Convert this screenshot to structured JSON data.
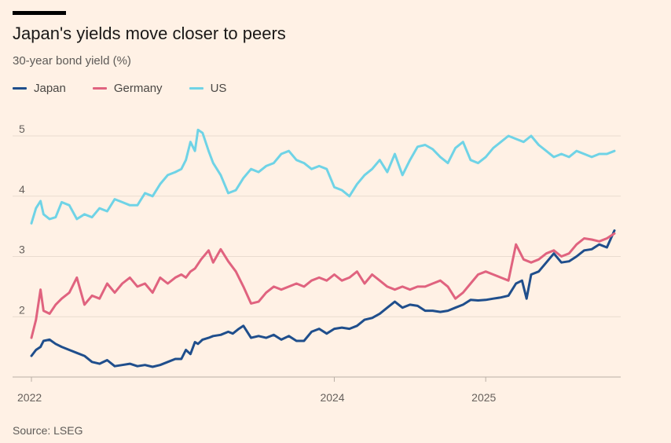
{
  "chart_data": {
    "type": "line",
    "title": "Japan's yields move closer to peers",
    "subtitle": "30-year bond yield (%)",
    "source": "Source: LSEG",
    "ylabel": "30-year bond yield (%)",
    "ylim": [
      1.0,
      5.3
    ],
    "yticks": [
      2,
      3,
      4,
      5
    ],
    "ytick_labels": [
      "2",
      "3",
      "4",
      "5"
    ],
    "x_range": [
      2022.0,
      2025.85
    ],
    "xticks": [
      2022,
      2024,
      2025
    ],
    "xtick_labels": [
      "2022",
      "2024",
      "2025"
    ],
    "legend_position": "top-left",
    "series": [
      {
        "name": "Japan",
        "color": "#1f4e8c",
        "points": [
          [
            2022.0,
            1.35
          ],
          [
            2022.03,
            1.45
          ],
          [
            2022.06,
            1.5
          ],
          [
            2022.08,
            1.6
          ],
          [
            2022.12,
            1.62
          ],
          [
            2022.16,
            1.55
          ],
          [
            2022.2,
            1.5
          ],
          [
            2022.25,
            1.45
          ],
          [
            2022.3,
            1.4
          ],
          [
            2022.35,
            1.35
          ],
          [
            2022.4,
            1.25
          ],
          [
            2022.45,
            1.22
          ],
          [
            2022.5,
            1.28
          ],
          [
            2022.55,
            1.18
          ],
          [
            2022.6,
            1.2
          ],
          [
            2022.65,
            1.22
          ],
          [
            2022.7,
            1.18
          ],
          [
            2022.75,
            1.2
          ],
          [
            2022.8,
            1.17
          ],
          [
            2022.85,
            1.2
          ],
          [
            2022.9,
            1.25
          ],
          [
            2022.95,
            1.3
          ],
          [
            2022.99,
            1.3
          ],
          [
            2023.02,
            1.45
          ],
          [
            2023.05,
            1.38
          ],
          [
            2023.08,
            1.58
          ],
          [
            2023.1,
            1.55
          ],
          [
            2023.13,
            1.62
          ],
          [
            2023.17,
            1.65
          ],
          [
            2023.2,
            1.68
          ],
          [
            2023.25,
            1.7
          ],
          [
            2023.3,
            1.75
          ],
          [
            2023.33,
            1.72
          ],
          [
            2023.37,
            1.8
          ],
          [
            2023.4,
            1.85
          ],
          [
            2023.45,
            1.65
          ],
          [
            2023.5,
            1.68
          ],
          [
            2023.55,
            1.65
          ],
          [
            2023.6,
            1.7
          ],
          [
            2023.65,
            1.62
          ],
          [
            2023.7,
            1.68
          ],
          [
            2023.75,
            1.6
          ],
          [
            2023.8,
            1.6
          ],
          [
            2023.85,
            1.75
          ],
          [
            2023.9,
            1.8
          ],
          [
            2023.95,
            1.72
          ],
          [
            2024.0,
            1.8
          ],
          [
            2024.05,
            1.82
          ],
          [
            2024.1,
            1.8
          ],
          [
            2024.15,
            1.85
          ],
          [
            2024.2,
            1.95
          ],
          [
            2024.25,
            1.98
          ],
          [
            2024.3,
            2.05
          ],
          [
            2024.35,
            2.15
          ],
          [
            2024.4,
            2.25
          ],
          [
            2024.45,
            2.15
          ],
          [
            2024.5,
            2.2
          ],
          [
            2024.55,
            2.18
          ],
          [
            2024.6,
            2.1
          ],
          [
            2024.65,
            2.1
          ],
          [
            2024.7,
            2.08
          ],
          [
            2024.75,
            2.1
          ],
          [
            2024.8,
            2.15
          ],
          [
            2024.85,
            2.2
          ],
          [
            2024.9,
            2.28
          ],
          [
            2024.95,
            2.27
          ],
          [
            2025.0,
            2.28
          ],
          [
            2025.05,
            2.3
          ],
          [
            2025.1,
            2.32
          ],
          [
            2025.15,
            2.35
          ],
          [
            2025.2,
            2.55
          ],
          [
            2025.24,
            2.6
          ],
          [
            2025.27,
            2.3
          ],
          [
            2025.3,
            2.7
          ],
          [
            2025.35,
            2.75
          ],
          [
            2025.4,
            2.9
          ],
          [
            2025.45,
            3.05
          ],
          [
            2025.5,
            2.9
          ],
          [
            2025.55,
            2.92
          ],
          [
            2025.6,
            3.0
          ],
          [
            2025.65,
            3.1
          ],
          [
            2025.7,
            3.12
          ],
          [
            2025.75,
            3.2
          ],
          [
            2025.8,
            3.15
          ],
          [
            2025.85,
            3.43
          ]
        ]
      },
      {
        "name": "Germany",
        "color": "#e0637f",
        "points": [
          [
            2022.0,
            1.65
          ],
          [
            2022.03,
            1.95
          ],
          [
            2022.06,
            2.45
          ],
          [
            2022.08,
            2.1
          ],
          [
            2022.12,
            2.05
          ],
          [
            2022.16,
            2.2
          ],
          [
            2022.2,
            2.3
          ],
          [
            2022.25,
            2.4
          ],
          [
            2022.3,
            2.65
          ],
          [
            2022.35,
            2.2
          ],
          [
            2022.4,
            2.35
          ],
          [
            2022.45,
            2.3
          ],
          [
            2022.5,
            2.55
          ],
          [
            2022.55,
            2.4
          ],
          [
            2022.6,
            2.55
          ],
          [
            2022.65,
            2.65
          ],
          [
            2022.7,
            2.5
          ],
          [
            2022.75,
            2.55
          ],
          [
            2022.8,
            2.4
          ],
          [
            2022.85,
            2.65
          ],
          [
            2022.9,
            2.55
          ],
          [
            2022.95,
            2.65
          ],
          [
            2022.99,
            2.7
          ],
          [
            2023.02,
            2.65
          ],
          [
            2023.05,
            2.75
          ],
          [
            2023.08,
            2.8
          ],
          [
            2023.12,
            2.95
          ],
          [
            2023.17,
            3.1
          ],
          [
            2023.2,
            2.9
          ],
          [
            2023.25,
            3.12
          ],
          [
            2023.3,
            2.92
          ],
          [
            2023.35,
            2.75
          ],
          [
            2023.4,
            2.5
          ],
          [
            2023.45,
            2.22
          ],
          [
            2023.5,
            2.25
          ],
          [
            2023.55,
            2.4
          ],
          [
            2023.6,
            2.5
          ],
          [
            2023.65,
            2.45
          ],
          [
            2023.7,
            2.5
          ],
          [
            2023.75,
            2.55
          ],
          [
            2023.8,
            2.5
          ],
          [
            2023.85,
            2.6
          ],
          [
            2023.9,
            2.65
          ],
          [
            2023.95,
            2.6
          ],
          [
            2024.0,
            2.7
          ],
          [
            2024.05,
            2.6
          ],
          [
            2024.1,
            2.65
          ],
          [
            2024.15,
            2.75
          ],
          [
            2024.2,
            2.55
          ],
          [
            2024.25,
            2.7
          ],
          [
            2024.3,
            2.6
          ],
          [
            2024.35,
            2.5
          ],
          [
            2024.4,
            2.45
          ],
          [
            2024.45,
            2.5
          ],
          [
            2024.5,
            2.45
          ],
          [
            2024.55,
            2.5
          ],
          [
            2024.6,
            2.5
          ],
          [
            2024.65,
            2.55
          ],
          [
            2024.7,
            2.6
          ],
          [
            2024.75,
            2.5
          ],
          [
            2024.8,
            2.3
          ],
          [
            2024.85,
            2.4
          ],
          [
            2024.9,
            2.55
          ],
          [
            2024.95,
            2.7
          ],
          [
            2025.0,
            2.75
          ],
          [
            2025.05,
            2.7
          ],
          [
            2025.1,
            2.65
          ],
          [
            2025.15,
            2.6
          ],
          [
            2025.2,
            3.2
          ],
          [
            2025.25,
            2.95
          ],
          [
            2025.3,
            2.9
          ],
          [
            2025.35,
            2.95
          ],
          [
            2025.4,
            3.05
          ],
          [
            2025.45,
            3.1
          ],
          [
            2025.5,
            3.0
          ],
          [
            2025.55,
            3.05
          ],
          [
            2025.6,
            3.2
          ],
          [
            2025.65,
            3.3
          ],
          [
            2025.7,
            3.28
          ],
          [
            2025.75,
            3.25
          ],
          [
            2025.8,
            3.3
          ],
          [
            2025.85,
            3.38
          ]
        ]
      },
      {
        "name": "US",
        "color": "#6fd3e6",
        "points": [
          [
            2022.0,
            3.55
          ],
          [
            2022.03,
            3.8
          ],
          [
            2022.06,
            3.92
          ],
          [
            2022.08,
            3.7
          ],
          [
            2022.12,
            3.62
          ],
          [
            2022.16,
            3.65
          ],
          [
            2022.2,
            3.9
          ],
          [
            2022.25,
            3.85
          ],
          [
            2022.3,
            3.62
          ],
          [
            2022.35,
            3.7
          ],
          [
            2022.4,
            3.65
          ],
          [
            2022.45,
            3.8
          ],
          [
            2022.5,
            3.75
          ],
          [
            2022.55,
            3.95
          ],
          [
            2022.6,
            3.9
          ],
          [
            2022.65,
            3.85
          ],
          [
            2022.7,
            3.85
          ],
          [
            2022.75,
            4.05
          ],
          [
            2022.8,
            4.0
          ],
          [
            2022.85,
            4.2
          ],
          [
            2022.9,
            4.35
          ],
          [
            2022.95,
            4.4
          ],
          [
            2022.99,
            4.45
          ],
          [
            2023.02,
            4.6
          ],
          [
            2023.05,
            4.9
          ],
          [
            2023.08,
            4.75
          ],
          [
            2023.1,
            5.1
          ],
          [
            2023.13,
            5.05
          ],
          [
            2023.17,
            4.75
          ],
          [
            2023.2,
            4.55
          ],
          [
            2023.25,
            4.35
          ],
          [
            2023.3,
            4.05
          ],
          [
            2023.35,
            4.1
          ],
          [
            2023.4,
            4.3
          ],
          [
            2023.45,
            4.45
          ],
          [
            2023.5,
            4.4
          ],
          [
            2023.55,
            4.5
          ],
          [
            2023.6,
            4.55
          ],
          [
            2023.65,
            4.7
          ],
          [
            2023.7,
            4.75
          ],
          [
            2023.75,
            4.6
          ],
          [
            2023.8,
            4.55
          ],
          [
            2023.85,
            4.45
          ],
          [
            2023.9,
            4.5
          ],
          [
            2023.95,
            4.45
          ],
          [
            2024.0,
            4.15
          ],
          [
            2024.05,
            4.1
          ],
          [
            2024.1,
            4.0
          ],
          [
            2024.15,
            4.2
          ],
          [
            2024.2,
            4.35
          ],
          [
            2024.25,
            4.45
          ],
          [
            2024.3,
            4.6
          ],
          [
            2024.35,
            4.4
          ],
          [
            2024.4,
            4.7
          ],
          [
            2024.45,
            4.35
          ],
          [
            2024.5,
            4.6
          ],
          [
            2024.55,
            4.82
          ],
          [
            2024.6,
            4.85
          ],
          [
            2024.65,
            4.78
          ],
          [
            2024.7,
            4.65
          ],
          [
            2024.75,
            4.55
          ],
          [
            2024.8,
            4.8
          ],
          [
            2024.85,
            4.9
          ],
          [
            2024.9,
            4.6
          ],
          [
            2024.95,
            4.55
          ],
          [
            2025.0,
            4.65
          ],
          [
            2025.05,
            4.8
          ],
          [
            2025.1,
            4.9
          ],
          [
            2025.15,
            5.0
          ],
          [
            2025.2,
            4.95
          ],
          [
            2025.25,
            4.9
          ],
          [
            2025.3,
            5.0
          ],
          [
            2025.35,
            4.85
          ],
          [
            2025.4,
            4.75
          ],
          [
            2025.45,
            4.65
          ],
          [
            2025.5,
            4.7
          ],
          [
            2025.55,
            4.65
          ],
          [
            2025.6,
            4.75
          ],
          [
            2025.65,
            4.7
          ],
          [
            2025.7,
            4.65
          ],
          [
            2025.75,
            4.7
          ],
          [
            2025.8,
            4.7
          ],
          [
            2025.85,
            4.75
          ]
        ]
      }
    ]
  }
}
